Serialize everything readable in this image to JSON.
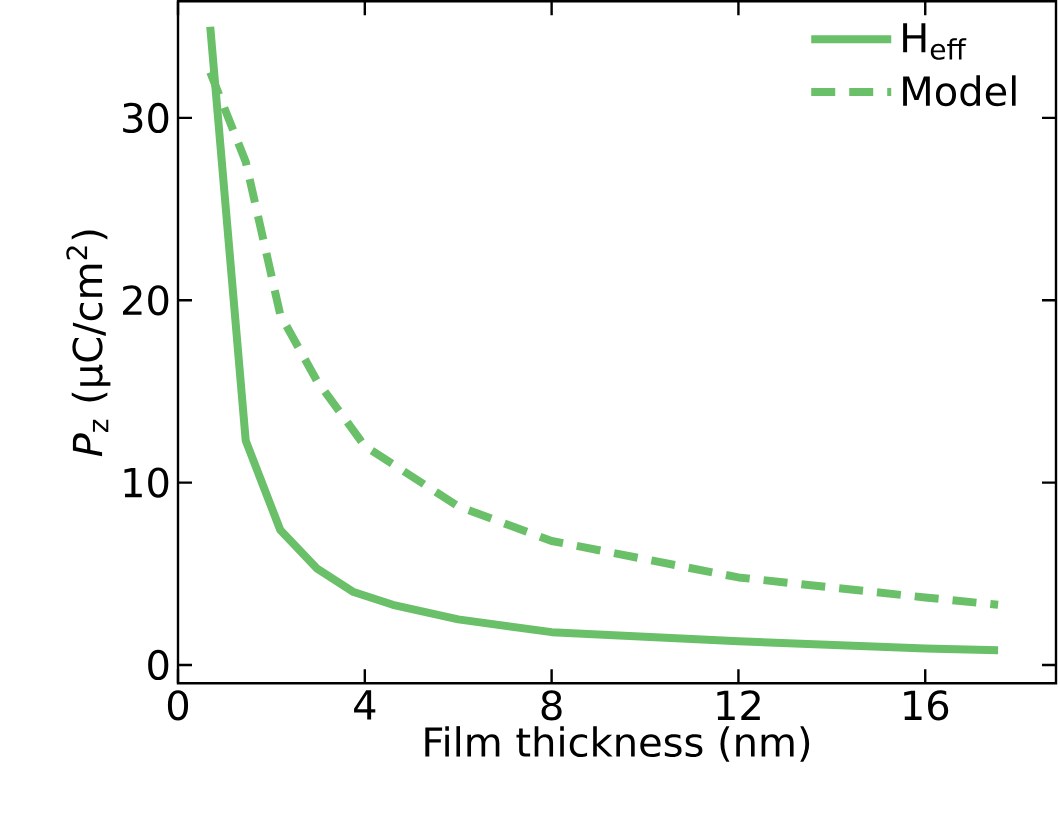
{
  "chart_data": {
    "type": "line",
    "xlabel": "Film thickness (nm)",
    "ylabel": "*P*$_{z}$ (μC/cm$^{2}$)",
    "xlim": [
      0,
      18.8
    ],
    "ylim": [
      -1,
      36.4
    ],
    "xticks": [
      0,
      4,
      8,
      12,
      16
    ],
    "yticks": [
      0,
      10,
      20,
      30
    ],
    "legend": "top right",
    "grid": false,
    "series": [
      {
        "name": "H$_{eff}$",
        "color": "#6abf69",
        "line_style": "solid",
        "x": [
          0.69,
          1.45,
          2.19,
          2.97,
          3.76,
          4.6,
          5.3,
          6,
          8,
          12,
          16,
          17.56
        ],
        "values": [
          35,
          12.3,
          7.4,
          5.3,
          4.0,
          3.3,
          2.9,
          2.5,
          1.8,
          1.3,
          0.9,
          0.8
        ]
      },
      {
        "name": "Model",
        "color": "#6abf69",
        "line_style": "dashed",
        "x": [
          0.69,
          1.45,
          2.19,
          2.97,
          4,
          6,
          8,
          12,
          16,
          17.56
        ],
        "values": [
          32.5,
          27.6,
          19.2,
          15.6,
          12.0,
          8.7,
          6.8,
          4.8,
          3.7,
          3.3
        ]
      }
    ]
  }
}
